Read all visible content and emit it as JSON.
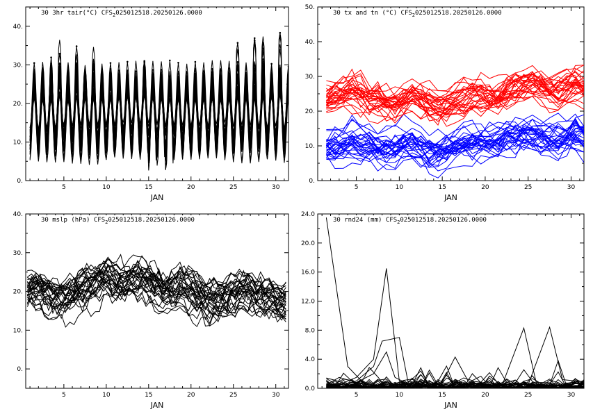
{
  "chart_data": [
    {
      "id": "tair",
      "type": "line",
      "title": "30 3hr tair(°C) CFS₂025012518.20250126.0000",
      "title_parts": {
        "pre": "30 3hr tair(",
        "deg": "°C",
        "mid": ") CFS",
        "sub": "2",
        "post": "025012518.20250126.0000"
      },
      "xlabel": "JAN",
      "xlim": [
        0.5,
        31.5
      ],
      "ylim": [
        0,
        45
      ],
      "x_ticks": [
        5,
        10,
        15,
        20,
        25,
        30
      ],
      "x_tick_labels": [
        "5",
        "10",
        "15",
        "20",
        "25",
        "30"
      ],
      "y_ticks": [
        0,
        10,
        20,
        30,
        40
      ],
      "y_tick_labels": [
        "0.",
        "10.",
        "20.",
        "30.",
        "40."
      ],
      "n_members": 30,
      "series_color": "#000000",
      "markers": true,
      "steps_per_day": 8,
      "base_mean": 17.5,
      "diurnal_amplitude": 7.5,
      "member_spread": 4.5,
      "peak_days": [
        3,
        4,
        6,
        8,
        14,
        25,
        27,
        28,
        30
      ],
      "peak_values": [
        31,
        35,
        33,
        33,
        32,
        38,
        38,
        37,
        40
      ],
      "trough_days": [
        16,
        17,
        15
      ],
      "trough_values": [
        2,
        2,
        4
      ]
    },
    {
      "id": "txtn",
      "type": "line",
      "title": "30 tx and tn (°C) CFS₂025012518.20250126.0000",
      "title_parts": {
        "pre": "30 tx and tn (",
        "deg": "°C",
        "mid": ") CFS",
        "sub": "2",
        "post": "025012518.20250126.0000"
      },
      "xlabel": "JAN",
      "xlim": [
        0.5,
        31.5
      ],
      "ylim": [
        0,
        50
      ],
      "x_ticks": [
        5,
        10,
        15,
        20,
        25,
        30
      ],
      "x_tick_labels": [
        "5",
        "10",
        "15",
        "20",
        "25",
        "30"
      ],
      "y_ticks": [
        0,
        10,
        20,
        30,
        40,
        50
      ],
      "y_tick_labels": [
        "0.",
        "10.",
        "20.",
        "30.",
        "40.",
        "50."
      ],
      "series": [
        {
          "name": "tx",
          "color": "#ff0000",
          "members": 30,
          "mean": [
            24,
            25,
            26,
            27,
            26,
            24,
            23,
            22,
            22,
            23,
            24,
            23,
            22,
            21,
            22,
            23,
            24,
            25,
            25,
            24,
            24,
            26,
            27,
            28,
            28,
            27,
            26,
            26,
            27,
            28,
            27
          ]
        },
        {
          "name": "tn",
          "color": "#0000ff",
          "members": 30,
          "mean": [
            10,
            10,
            11,
            12,
            11,
            11,
            10,
            10,
            10,
            11,
            11,
            10,
            9,
            9,
            10,
            11,
            12,
            12,
            12,
            12,
            12,
            13,
            13,
            14,
            14,
            13,
            12,
            12,
            13,
            14,
            13
          ]
        }
      ],
      "member_spread": 5.5
    },
    {
      "id": "mslp",
      "type": "line",
      "title": "30 mslp (hPa) CFS₂025012518.20250126.0000",
      "title_parts": {
        "pre": "30 mslp (hPa) CFS",
        "sub": "2",
        "post": "025012518.20250126.0000"
      },
      "xlabel": "JAN",
      "xlim": [
        0.5,
        31.5
      ],
      "ylim": [
        -5,
        40
      ],
      "x_ticks": [
        5,
        10,
        15,
        20,
        25,
        30
      ],
      "x_tick_labels": [
        "5",
        "10",
        "15",
        "20",
        "25",
        "30"
      ],
      "y_ticks": [
        0,
        10,
        20,
        30,
        40
      ],
      "y_tick_labels": [
        "0.",
        "10.",
        "20.",
        "30.",
        "40."
      ],
      "n_members": 30,
      "series_color": "#000000",
      "mean": [
        20,
        20,
        19,
        18,
        18,
        19,
        20,
        21,
        22,
        23,
        22,
        22,
        23,
        23,
        22,
        21,
        20,
        20,
        21,
        20,
        19,
        18,
        18,
        18,
        19,
        20,
        20,
        19,
        18,
        17,
        17
      ],
      "member_spread": 5
    },
    {
      "id": "rnd24",
      "type": "line",
      "title": "30 rnd24 (mm) CFS₂025012518.20250126.0000",
      "title_parts": {
        "pre": "30 rnd24 (mm) CFS",
        "sub": "2",
        "post": "025012518.20250126.0000"
      },
      "xlabel": "JAN",
      "xlim": [
        0.5,
        31.5
      ],
      "ylim": [
        0,
        24
      ],
      "x_ticks": [
        5,
        10,
        15,
        20,
        25,
        30
      ],
      "x_tick_labels": [
        "5",
        "10",
        "15",
        "20",
        "25",
        "30"
      ],
      "y_ticks": [
        0,
        4,
        8,
        12,
        16,
        20,
        24
      ],
      "y_tick_labels": [
        "0.0",
        "4.0",
        "8.0",
        "12.0",
        "16.0",
        "20.0",
        "24.0"
      ],
      "n_members": 30,
      "series_color": "#000000",
      "highlighted_members": [
        {
          "x": [
            1.5,
            4,
            6,
            8.5,
            10.5,
            12,
            14,
            16,
            18,
            20,
            22,
            24,
            26,
            28,
            30,
            31.5
          ],
          "y": [
            23.5,
            3,
            0.5,
            0.3,
            0.2,
            0.1,
            0.2,
            0.3,
            0.2,
            0.1,
            0.3,
            0.5,
            0.4,
            0.3,
            0.6,
            0.8
          ]
        },
        {
          "x": [
            1.5,
            3,
            5,
            7,
            8.5,
            10,
            12,
            14,
            16,
            18,
            20,
            22,
            24,
            26,
            28,
            30,
            31.5
          ],
          "y": [
            0.3,
            0.5,
            1.5,
            4,
            16.5,
            1,
            0.3,
            0.5,
            0.4,
            0.2,
            0.3,
            0.5,
            0.6,
            0.5,
            0.4,
            0.8,
            1
          ]
        },
        {
          "x": [
            1.5,
            3,
            5,
            7,
            8,
            10,
            11,
            13,
            15,
            16.5,
            18,
            20,
            22,
            24.5,
            26,
            28,
            30,
            31.5
          ],
          "y": [
            0.2,
            0.4,
            1,
            3,
            6.5,
            7,
            1,
            0.5,
            0.8,
            4.3,
            1,
            0.3,
            0.5,
            8.3,
            0.5,
            0.3,
            0.5,
            0.9
          ]
        },
        {
          "x": [
            1.5,
            3,
            5,
            7,
            8.5,
            9.5,
            11,
            13,
            15,
            17,
            19,
            21,
            23,
            25,
            27.5,
            29,
            31.5
          ],
          "y": [
            0.5,
            1.5,
            0.8,
            2,
            5,
            1.5,
            0.6,
            0.8,
            0.4,
            0.5,
            0.6,
            0.4,
            0.6,
            0.5,
            8.4,
            1.2,
            0.9
          ]
        }
      ],
      "base_level": 0.6
    }
  ]
}
